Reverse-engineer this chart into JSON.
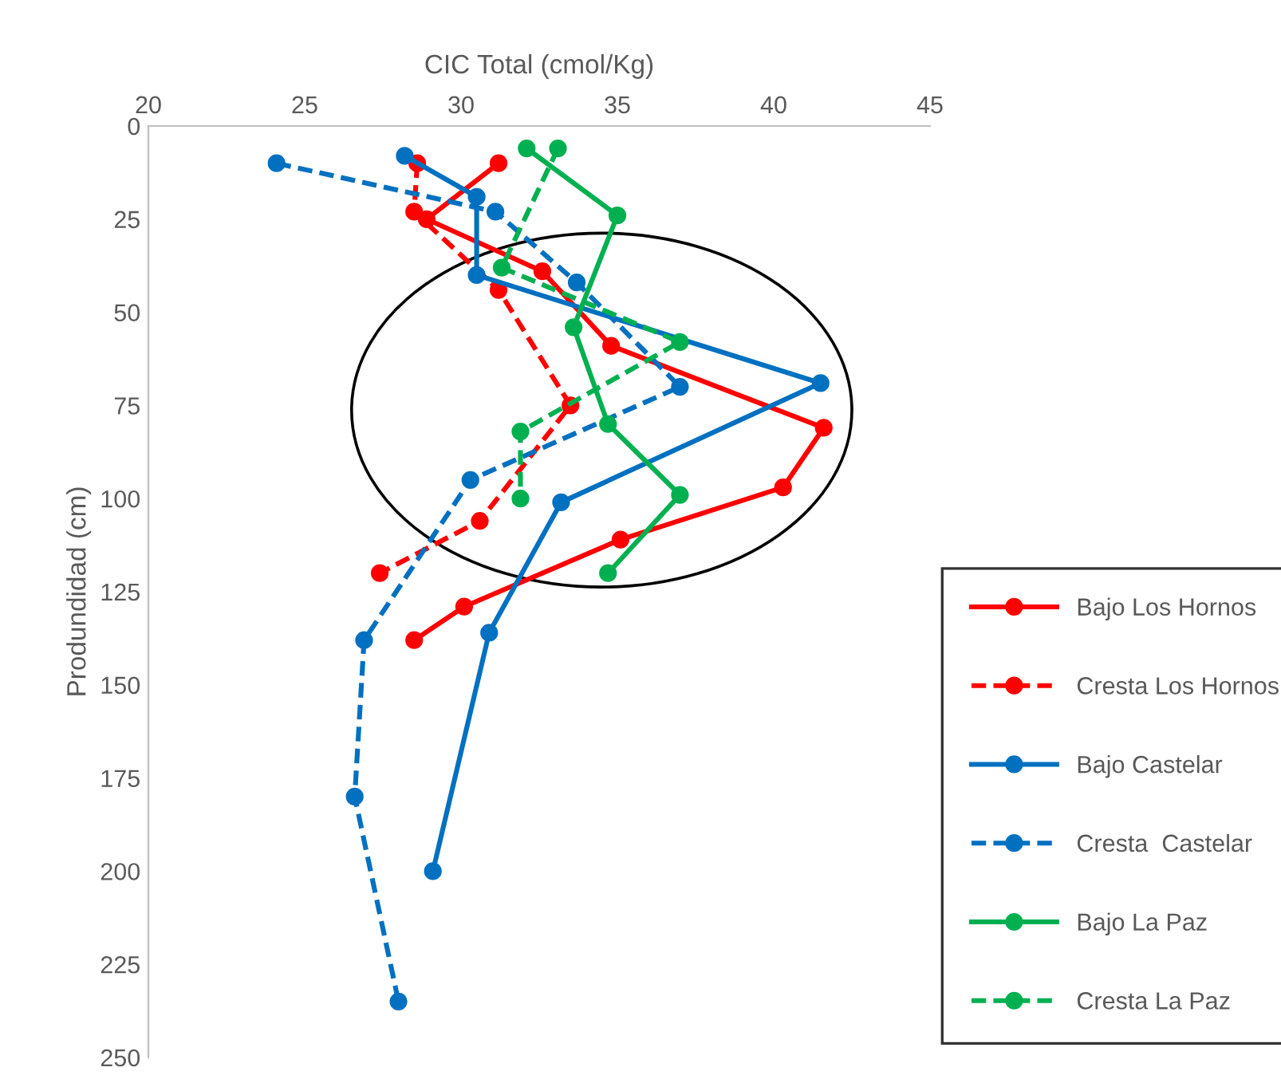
{
  "chart_data": {
    "type": "line",
    "xlabel": "CIC Total (cmol/Kg)",
    "ylabel": "Produndidad (cm)",
    "xlim": [
      20,
      45
    ],
    "xticks": [
      20,
      25,
      30,
      35,
      40,
      45
    ],
    "ylim": [
      250,
      0
    ],
    "yticks": [
      0,
      25,
      50,
      75,
      100,
      125,
      150,
      175,
      200,
      225,
      250
    ],
    "grid": false,
    "legend": "right",
    "marker": "circle",
    "series": [
      {
        "name": "Bajo Los Hornos",
        "color": "#ff0000",
        "line_style": "solid",
        "x": [
          31.2,
          28.9,
          32.6,
          34.8,
          41.6,
          40.3,
          35.1,
          30.1,
          28.5
        ],
        "values": [
          10,
          25,
          39,
          59,
          81,
          97,
          111,
          129,
          138
        ]
      },
      {
        "name": "Cresta Los Hornos",
        "color": "#ff0000",
        "line_style": "dashed",
        "x": [
          28.6,
          28.5,
          31.2,
          33.5,
          30.6,
          27.4
        ],
        "values": [
          10,
          23,
          44,
          75,
          106,
          120
        ]
      },
      {
        "name": "Bajo Castelar",
        "color": "#0070c0",
        "line_style": "solid",
        "x": [
          28.2,
          30.5,
          30.5,
          41.5,
          33.2,
          30.9,
          29.1
        ],
        "values": [
          8,
          19,
          40,
          69,
          101,
          136,
          200
        ]
      },
      {
        "name": "Cresta  Castelar",
        "color": "#0070c0",
        "line_style": "dashed",
        "x": [
          24.1,
          31.1,
          33.7,
          37.0,
          30.3,
          26.9,
          26.6,
          28.0
        ],
        "values": [
          10,
          23,
          42,
          70,
          95,
          138,
          180,
          235
        ]
      },
      {
        "name": "Bajo La Paz",
        "color": "#00b050",
        "line_style": "solid",
        "x": [
          32.1,
          35.0,
          33.6,
          34.7,
          37.0,
          34.7
        ],
        "values": [
          6,
          24,
          54,
          80,
          99,
          120
        ]
      },
      {
        "name": "Cresta La Paz",
        "color": "#00b050",
        "line_style": "dashed",
        "x": [
          33.1,
          31.3,
          37.0,
          31.9,
          31.9
        ],
        "values": [
          6,
          38,
          58,
          82,
          100
        ]
      }
    ]
  }
}
